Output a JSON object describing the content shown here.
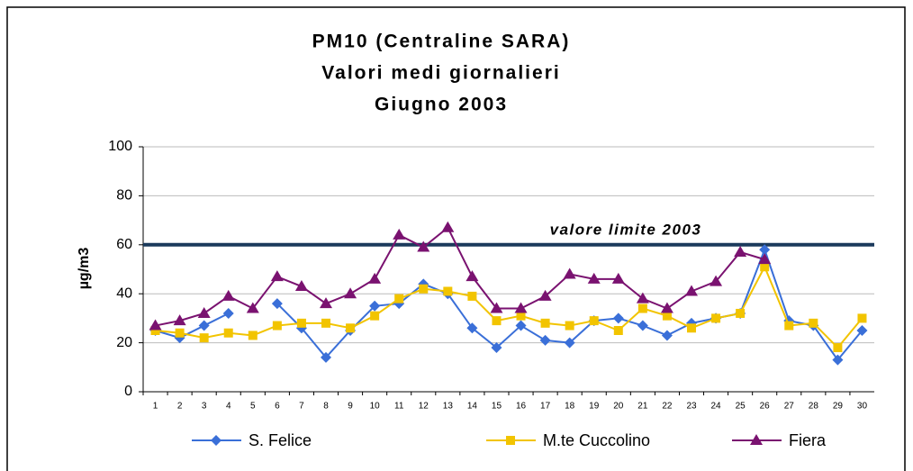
{
  "chart_data": {
    "type": "line",
    "title": [
      "PM10 (Centraline SARA)",
      "Valori medi giornalieri",
      "Giugno 2003"
    ],
    "y_label": "µg/m3",
    "categories": [
      "1",
      "2",
      "3",
      "4",
      "5",
      "6",
      "7",
      "8",
      "9",
      "10",
      "11",
      "12",
      "13",
      "14",
      "15",
      "16",
      "17",
      "18",
      "19",
      "20",
      "21",
      "22",
      "23",
      "24",
      "25",
      "26",
      "27",
      "28",
      "29",
      "30"
    ],
    "series": [
      {
        "name": "S. Felice",
        "color": "#3a6fd8",
        "marker": "diamond",
        "values": [
          25,
          22,
          27,
          32,
          null,
          36,
          26,
          14,
          25,
          35,
          36,
          44,
          40,
          26,
          18,
          27,
          21,
          20,
          29,
          30,
          27,
          23,
          28,
          30,
          32,
          58,
          29,
          27,
          13,
          25
        ]
      },
      {
        "name": "M.te Cuccolino",
        "color": "#f2c400",
        "marker": "square",
        "values": [
          25,
          24,
          22,
          24,
          23,
          27,
          28,
          28,
          26,
          31,
          38,
          42,
          41,
          39,
          29,
          31,
          28,
          27,
          29,
          25,
          34,
          31,
          26,
          30,
          32,
          51,
          27,
          28,
          18,
          30
        ]
      },
      {
        "name": "Fiera",
        "color": "#7a1270",
        "marker": "triangle",
        "values": [
          27,
          29,
          32,
          39,
          34,
          47,
          43,
          36,
          40,
          46,
          64,
          59,
          67,
          47,
          34,
          34,
          39,
          48,
          46,
          46,
          38,
          34,
          41,
          45,
          57,
          54,
          null,
          null,
          null,
          null
        ]
      }
    ],
    "limit": {
      "value": 60,
      "label": "valore limite 2003",
      "color": "#1b3a5c"
    },
    "ylim": [
      0,
      100
    ],
    "yticks": [
      0,
      20,
      40,
      60,
      80,
      100
    ],
    "grid": true,
    "legend": "bottom"
  }
}
